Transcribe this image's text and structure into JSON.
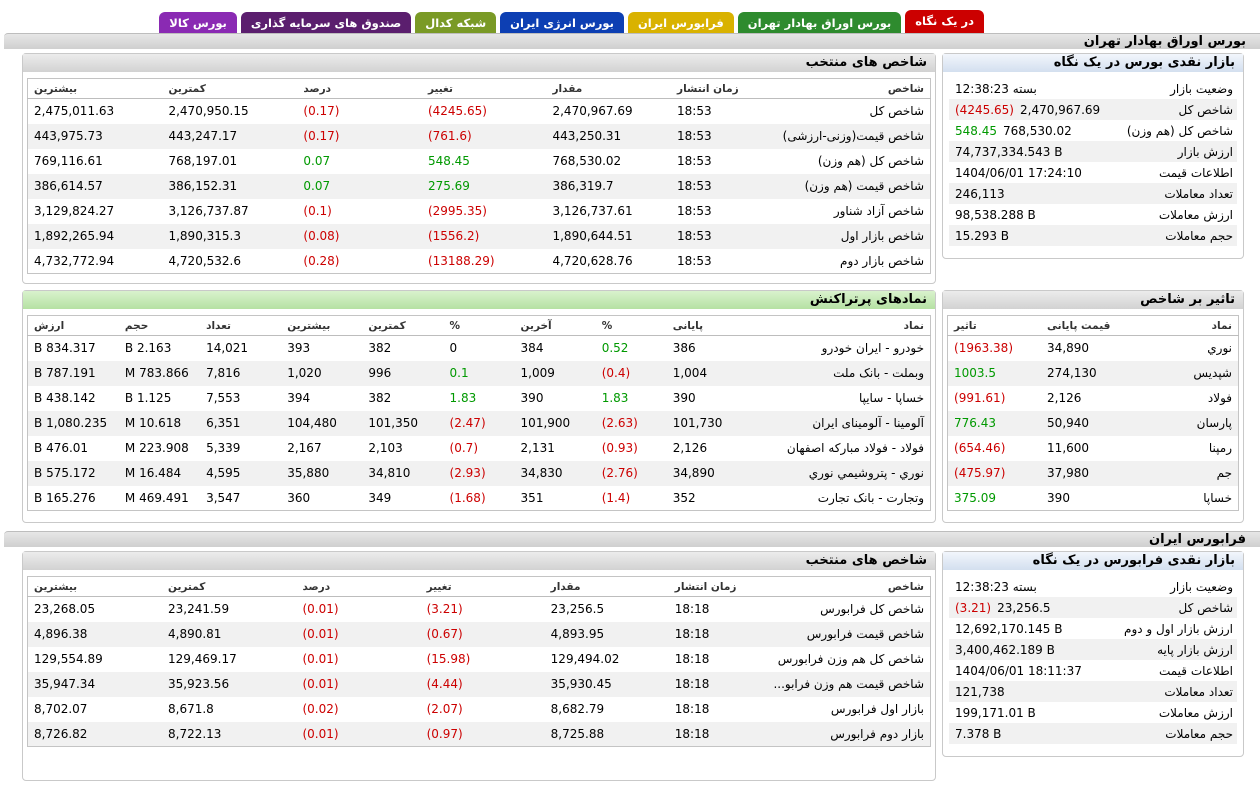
{
  "tabs": [
    {
      "label": "در یک نگاه",
      "bg": "#cc0000",
      "fg": "#ffffff",
      "active": true
    },
    {
      "label": "بورس اوراق بهادار تهران",
      "bg": "#2e8b2e",
      "fg": "#ffffff",
      "active": false
    },
    {
      "label": "فرابورس ایران",
      "bg": "#d9b200",
      "fg": "#ffffff",
      "active": false
    },
    {
      "label": "بورس انرژی ایران",
      "bg": "#0d3fb3",
      "fg": "#ffffff",
      "active": false
    },
    {
      "label": "شبکه کدال",
      "bg": "#7a9a26",
      "fg": "#ffffff",
      "active": false
    },
    {
      "label": "صندوق های سرمایه گذاری",
      "bg": "#5b1e6e",
      "fg": "#ffffff",
      "active": false
    },
    {
      "label": "بورس کالا",
      "bg": "#8a2ab3",
      "fg": "#ffffff",
      "active": false
    }
  ],
  "tse": {
    "section_title": "بورس اوراق بهادار تهران",
    "indices_title": "شاخص های منتخب",
    "indices_headers": [
      "شاخص",
      "زمان انتشار",
      "مقدار",
      "تغییر",
      "درصد",
      "کمترین",
      "بیشترین"
    ],
    "indices_rows": [
      {
        "name": "شاخص کل",
        "time": "18:53",
        "value": "2,470,967.69",
        "change": "(4245.65)",
        "pct": "(0.17)",
        "min": "2,470,950.15",
        "max": "2,475,011.63",
        "neg": true
      },
      {
        "name": "شاخص قیمت(وزنی-ارزشی)",
        "time": "18:53",
        "value": "443,250.31",
        "change": "(761.6)",
        "pct": "(0.17)",
        "min": "443,247.17",
        "max": "443,975.73",
        "neg": true
      },
      {
        "name": "شاخص کل (هم وزن)",
        "time": "18:53",
        "value": "768,530.02",
        "change": "548.45",
        "pct": "0.07",
        "min": "768,197.01",
        "max": "769,116.61",
        "neg": false
      },
      {
        "name": "شاخص قیمت (هم وزن)",
        "time": "18:53",
        "value": "386,319.7",
        "change": "275.69",
        "pct": "0.07",
        "min": "386,152.31",
        "max": "386,614.57",
        "neg": false
      },
      {
        "name": "شاخص آزاد شناور",
        "time": "18:53",
        "value": "3,126,737.61",
        "change": "(2995.35)",
        "pct": "(0.1)",
        "min": "3,126,737.87",
        "max": "3,129,824.27",
        "neg": true
      },
      {
        "name": "شاخص بازار اول",
        "time": "18:53",
        "value": "1,890,644.51",
        "change": "(1556.2)",
        "pct": "(0.08)",
        "min": "1,890,315.3",
        "max": "1,892,265.94",
        "neg": true
      },
      {
        "name": "شاخص بازار دوم",
        "time": "18:53",
        "value": "4,720,628.76",
        "change": "(13188.29)",
        "pct": "(0.28)",
        "min": "4,720,532.6",
        "max": "4,732,772.94",
        "neg": true
      }
    ],
    "glance_title": "بازار نقدی بورس در یک نگاه",
    "glance_rows": [
      {
        "label": "وضعیت بازار",
        "value": "بسته 12:38:23",
        "extra": "",
        "neg": false
      },
      {
        "label": "شاخص کل",
        "value": "2,470,967.69",
        "extra": "(4245.65)",
        "neg": true
      },
      {
        "label": "شاخص کل (هم وزن)",
        "value": "768,530.02",
        "extra": "548.45",
        "neg": false
      },
      {
        "label": "ارزش بازار",
        "value": "74,737,334.543 B",
        "extra": "",
        "neg": false
      },
      {
        "label": "اطلاعات قیمت",
        "value": "1404/06/01 17:24:10",
        "extra": "",
        "neg": false
      },
      {
        "label": "تعداد معاملات",
        "value": "246,113",
        "extra": "",
        "neg": false
      },
      {
        "label": "ارزش معاملات",
        "value": "98,538.288 B",
        "extra": "",
        "neg": false
      },
      {
        "label": "حجم معاملات",
        "value": "15.293 B",
        "extra": "",
        "neg": false
      }
    ],
    "symbols_title": "نمادهای پرتراکنش",
    "symbols_headers": [
      "نماد",
      "پایانی",
      "%",
      "آخرین",
      "%",
      "کمترین",
      "بیشترین",
      "تعداد",
      "حجم",
      "ارزش"
    ],
    "symbols_rows": [
      {
        "name": "خودرو - ایران خودرو",
        "close": "386",
        "close_pct": "0.52",
        "last": "384",
        "last_pct": "0",
        "min": "382",
        "max": "393",
        "count": "14,021",
        "vol": "2.163 B",
        "val": "834.317 B",
        "cneg": false,
        "lneg": false,
        "lzero": true
      },
      {
        "name": "وبملت - بانک ملت",
        "close": "1,004",
        "close_pct": "(0.4)",
        "last": "1,009",
        "last_pct": "0.1",
        "min": "996",
        "max": "1,020",
        "count": "7,816",
        "vol": "783.866 M",
        "val": "787.191 B",
        "cneg": true,
        "lneg": false,
        "lzero": false
      },
      {
        "name": "خساپا - سایپا",
        "close": "390",
        "close_pct": "1.83",
        "last": "390",
        "last_pct": "1.83",
        "min": "382",
        "max": "394",
        "count": "7,553",
        "vol": "1.125 B",
        "val": "438.142 B",
        "cneg": false,
        "lneg": false,
        "lzero": false
      },
      {
        "name": "آلومینا - آلومینای ایران",
        "close": "101,730",
        "close_pct": "(2.63)",
        "last": "101,900",
        "last_pct": "(2.47)",
        "min": "101,350",
        "max": "104,480",
        "count": "6,351",
        "vol": "10.618 M",
        "val": "1,080.235 B",
        "cneg": true,
        "lneg": true,
        "lzero": false
      },
      {
        "name": "فولاد - فولاد مبارکه اصفهان",
        "close": "2,126",
        "close_pct": "(0.93)",
        "last": "2,131",
        "last_pct": "(0.7)",
        "min": "2,103",
        "max": "2,167",
        "count": "5,339",
        "vol": "223.908 M",
        "val": "476.01 B",
        "cneg": true,
        "lneg": true,
        "lzero": false
      },
      {
        "name": "نوري - پتروشیمي نوري",
        "close": "34,890",
        "close_pct": "(2.76)",
        "last": "34,830",
        "last_pct": "(2.93)",
        "min": "34,810",
        "max": "35,880",
        "count": "4,595",
        "vol": "16.484 M",
        "val": "575.172 B",
        "cneg": true,
        "lneg": true,
        "lzero": false
      },
      {
        "name": "وتجارت - بانک تجارت",
        "close": "352",
        "close_pct": "(1.4)",
        "last": "351",
        "last_pct": "(1.68)",
        "min": "349",
        "max": "360",
        "count": "3,547",
        "vol": "469.491 M",
        "val": "165.276 B",
        "cneg": true,
        "lneg": true,
        "lzero": false
      }
    ],
    "impact_title": "تاثیر بر شاخص",
    "impact_headers": [
      "نماد",
      "قیمت پایانی",
      "تاثیر"
    ],
    "impact_rows": [
      {
        "name": "نوري",
        "price": "34,890",
        "impact": "(1963.38)",
        "neg": true
      },
      {
        "name": "شپدیس",
        "price": "274,130",
        "impact": "1003.5",
        "neg": false
      },
      {
        "name": "فولاد",
        "price": "2,126",
        "impact": "(991.61)",
        "neg": true
      },
      {
        "name": "پارسان",
        "price": "50,940",
        "impact": "776.43",
        "neg": false
      },
      {
        "name": "رمپنا",
        "price": "11,600",
        "impact": "(654.46)",
        "neg": true
      },
      {
        "name": "جم",
        "price": "37,980",
        "impact": "(475.97)",
        "neg": true
      },
      {
        "name": "خساپا",
        "price": "390",
        "impact": "375.09",
        "neg": false
      }
    ]
  },
  "ifb": {
    "section_title": "فرابورس ایران",
    "indices_title": "شاخص های منتخب",
    "indices_headers": [
      "شاخص",
      "زمان انتشار",
      "مقدار",
      "تغییر",
      "درصد",
      "کمترین",
      "بیشترین"
    ],
    "indices_rows": [
      {
        "name": "شاخص کل فرابورس",
        "time": "18:18",
        "value": "23,256.5",
        "change": "(3.21)",
        "pct": "(0.01)",
        "min": "23,241.59",
        "max": "23,268.05",
        "neg": true
      },
      {
        "name": "شاخص قیمت فرابورس",
        "time": "18:18",
        "value": "4,893.95",
        "change": "(0.67)",
        "pct": "(0.01)",
        "min": "4,890.81",
        "max": "4,896.38",
        "neg": true
      },
      {
        "name": "شاخص کل هم وزن فرابورس",
        "time": "18:18",
        "value": "129,494.02",
        "change": "(15.98)",
        "pct": "(0.01)",
        "min": "129,469.17",
        "max": "129,554.89",
        "neg": true
      },
      {
        "name": "شاخص قیمت هم وزن فرابو...",
        "time": "18:18",
        "value": "35,930.45",
        "change": "(4.44)",
        "pct": "(0.01)",
        "min": "35,923.56",
        "max": "35,947.34",
        "neg": true
      },
      {
        "name": "بازار اول فرابورس",
        "time": "18:18",
        "value": "8,682.79",
        "change": "(2.07)",
        "pct": "(0.02)",
        "min": "8,671.8",
        "max": "8,702.07",
        "neg": true
      },
      {
        "name": "بازار دوم فرابورس",
        "time": "18:18",
        "value": "8,725.88",
        "change": "(0.97)",
        "pct": "(0.01)",
        "min": "8,722.13",
        "max": "8,726.82",
        "neg": true
      }
    ],
    "glance_title": "بازار نقدی فرابورس در یک نگاه",
    "glance_rows": [
      {
        "label": "وضعیت بازار",
        "value": "بسته 12:38:23",
        "extra": "",
        "neg": false
      },
      {
        "label": "شاخص کل",
        "value": "23,256.5",
        "extra": "(3.21)",
        "neg": true
      },
      {
        "label": "ارزش بازار اول و دوم",
        "value": "12,692,170.145 B",
        "extra": "",
        "neg": false
      },
      {
        "label": "ارزش بازار پایه",
        "value": "3,400,462.189 B",
        "extra": "",
        "neg": false
      },
      {
        "label": "اطلاعات قیمت",
        "value": "1404/06/01 18:11:37",
        "extra": "",
        "neg": false
      },
      {
        "label": "تعداد معاملات",
        "value": "121,738",
        "extra": "",
        "neg": false
      },
      {
        "label": "ارزش معاملات",
        "value": "199,171.01 B",
        "extra": "",
        "neg": false
      },
      {
        "label": "حجم معاملات",
        "value": "7.378 B",
        "extra": "",
        "neg": false
      }
    ]
  }
}
